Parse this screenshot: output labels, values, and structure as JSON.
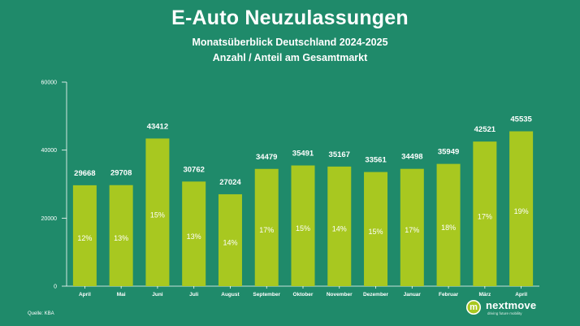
{
  "chart_data": {
    "type": "bar",
    "title": "E-Auto Neuzulassungen",
    "subtitle": "Monatsüberblick Deutschland 2024-2025",
    "subtitle2": "Anzahl / Anteil am Gesamtmarkt",
    "categories": [
      "April",
      "Mai",
      "Juni",
      "Juli",
      "August",
      "September",
      "Oktober",
      "November",
      "Dezember",
      "Januar",
      "Februar",
      "März",
      "April"
    ],
    "values": [
      29668,
      29708,
      43412,
      30762,
      27024,
      34479,
      35491,
      35167,
      33561,
      34498,
      35949,
      42521,
      45535
    ],
    "shares": [
      "12%",
      "13%",
      "15%",
      "13%",
      "14%",
      "17%",
      "15%",
      "14%",
      "15%",
      "17%",
      "18%",
      "17%",
      "19%"
    ],
    "yticks": [
      0,
      20000,
      40000,
      60000
    ],
    "ylim": [
      0,
      60000
    ],
    "xlabel": "",
    "ylabel": "",
    "colors": {
      "bar": "#a8c820",
      "background": "#1f8a6a",
      "text": "#ffffff"
    }
  },
  "source": "Quelle: KBA",
  "brand": {
    "name": "nextmove",
    "tagline": "driving future mobility",
    "logo_letter": "m"
  }
}
